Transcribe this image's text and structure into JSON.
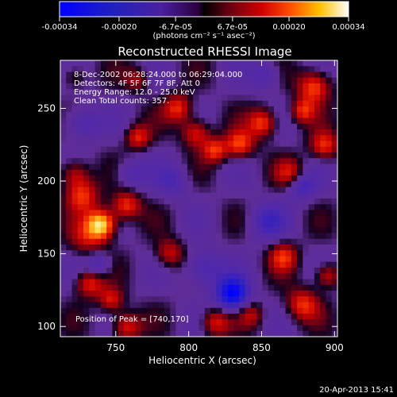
{
  "colorbar": {
    "tick_labels": [
      "-0.00034",
      "-0.00020",
      "-6.7e-05",
      "6.7e-05",
      "0.00020",
      "0.00034"
    ],
    "unit_label": "(photons cm⁻² s⁻¹ asec⁻²)",
    "range": [
      -0.00034,
      0.00034
    ]
  },
  "chart_data": {
    "type": "heatmap",
    "title": "Reconstructed RHESSI Image",
    "xlabel": "Heliocentric X (arcsec)",
    "ylabel": "Heliocentric Y (arcsec)",
    "xlim": [
      712,
      902
    ],
    "ylim": [
      93,
      283
    ],
    "xticks": [
      750,
      800,
      850,
      900
    ],
    "yticks": [
      100,
      150,
      200,
      250
    ],
    "grid": false,
    "info_lines": [
      "8-Dec-2002 06:28:24.000 to 06:29:04.000",
      "Detectors: 4F 5F 6F 7F 8F, Att 0",
      "Energy Range: 12.0 - 25.0 keV",
      "Clean    Total counts: 357."
    ],
    "peak_label": "Position of Peak = [740,170]",
    "peak_position": [
      740,
      170
    ],
    "sources": [
      {
        "x": 740,
        "y": 170,
        "amp": 1.0,
        "sigma": 7
      },
      {
        "x": 730,
        "y": 160,
        "amp": 0.35,
        "sigma": 9
      },
      {
        "x": 757,
        "y": 183,
        "amp": 0.6,
        "sigma": 7
      },
      {
        "x": 727,
        "y": 190,
        "amp": 0.55,
        "sigma": 8
      },
      {
        "x": 722,
        "y": 205,
        "amp": 0.45,
        "sigma": 7
      },
      {
        "x": 765,
        "y": 230,
        "amp": 0.5,
        "sigma": 6
      },
      {
        "x": 793,
        "y": 250,
        "amp": 0.55,
        "sigma": 7
      },
      {
        "x": 805,
        "y": 233,
        "amp": 0.55,
        "sigma": 7
      },
      {
        "x": 835,
        "y": 225,
        "amp": 0.6,
        "sigma": 7
      },
      {
        "x": 818,
        "y": 221,
        "amp": 0.55,
        "sigma": 6
      },
      {
        "x": 851,
        "y": 240,
        "amp": 0.6,
        "sigma": 7
      },
      {
        "x": 886,
        "y": 265,
        "amp": 0.65,
        "sigma": 8
      },
      {
        "x": 878,
        "y": 248,
        "amp": 0.5,
        "sigma": 6
      },
      {
        "x": 893,
        "y": 224,
        "amp": 0.55,
        "sigma": 7
      },
      {
        "x": 870,
        "y": 205,
        "amp": 0.45,
        "sigma": 7
      },
      {
        "x": 732,
        "y": 130,
        "amp": 0.55,
        "sigma": 7
      },
      {
        "x": 747,
        "y": 118,
        "amp": 0.5,
        "sigma": 6
      },
      {
        "x": 757,
        "y": 100,
        "amp": 0.55,
        "sigma": 7
      },
      {
        "x": 787,
        "y": 150,
        "amp": 0.45,
        "sigma": 7
      },
      {
        "x": 818,
        "y": 103,
        "amp": 0.5,
        "sigma": 7
      },
      {
        "x": 865,
        "y": 148,
        "amp": 0.5,
        "sigma": 7
      },
      {
        "x": 878,
        "y": 115,
        "amp": 0.55,
        "sigma": 8
      },
      {
        "x": 895,
        "y": 135,
        "amp": 0.5,
        "sigma": 6
      },
      {
        "x": 843,
        "y": 108,
        "amp": 0.35,
        "sigma": 6
      },
      {
        "x": 765,
        "y": 270,
        "amp": 0.35,
        "sigma": 6
      },
      {
        "x": 722,
        "y": 272,
        "amp": 0.3,
        "sigma": 6
      },
      {
        "x": 830,
        "y": 122,
        "amp": -0.85,
        "sigma": 8
      },
      {
        "x": 810,
        "y": 140,
        "amp": -0.45,
        "sigma": 9
      },
      {
        "x": 738,
        "y": 142,
        "amp": -0.45,
        "sigma": 6
      },
      {
        "x": 877,
        "y": 197,
        "amp": -0.45,
        "sigma": 7
      },
      {
        "x": 727,
        "y": 240,
        "amp": -0.4,
        "sigma": 8
      },
      {
        "x": 853,
        "y": 172,
        "amp": -0.35,
        "sigma": 9
      },
      {
        "x": 790,
        "y": 200,
        "amp": -0.3,
        "sigma": 8
      },
      {
        "x": 853,
        "y": 273,
        "amp": -0.35,
        "sigma": 7
      },
      {
        "x": 760,
        "y": 205,
        "amp": -0.3,
        "sigma": 7
      }
    ]
  },
  "footer": {
    "timestamp": "20-Apr-2013 15:41"
  }
}
